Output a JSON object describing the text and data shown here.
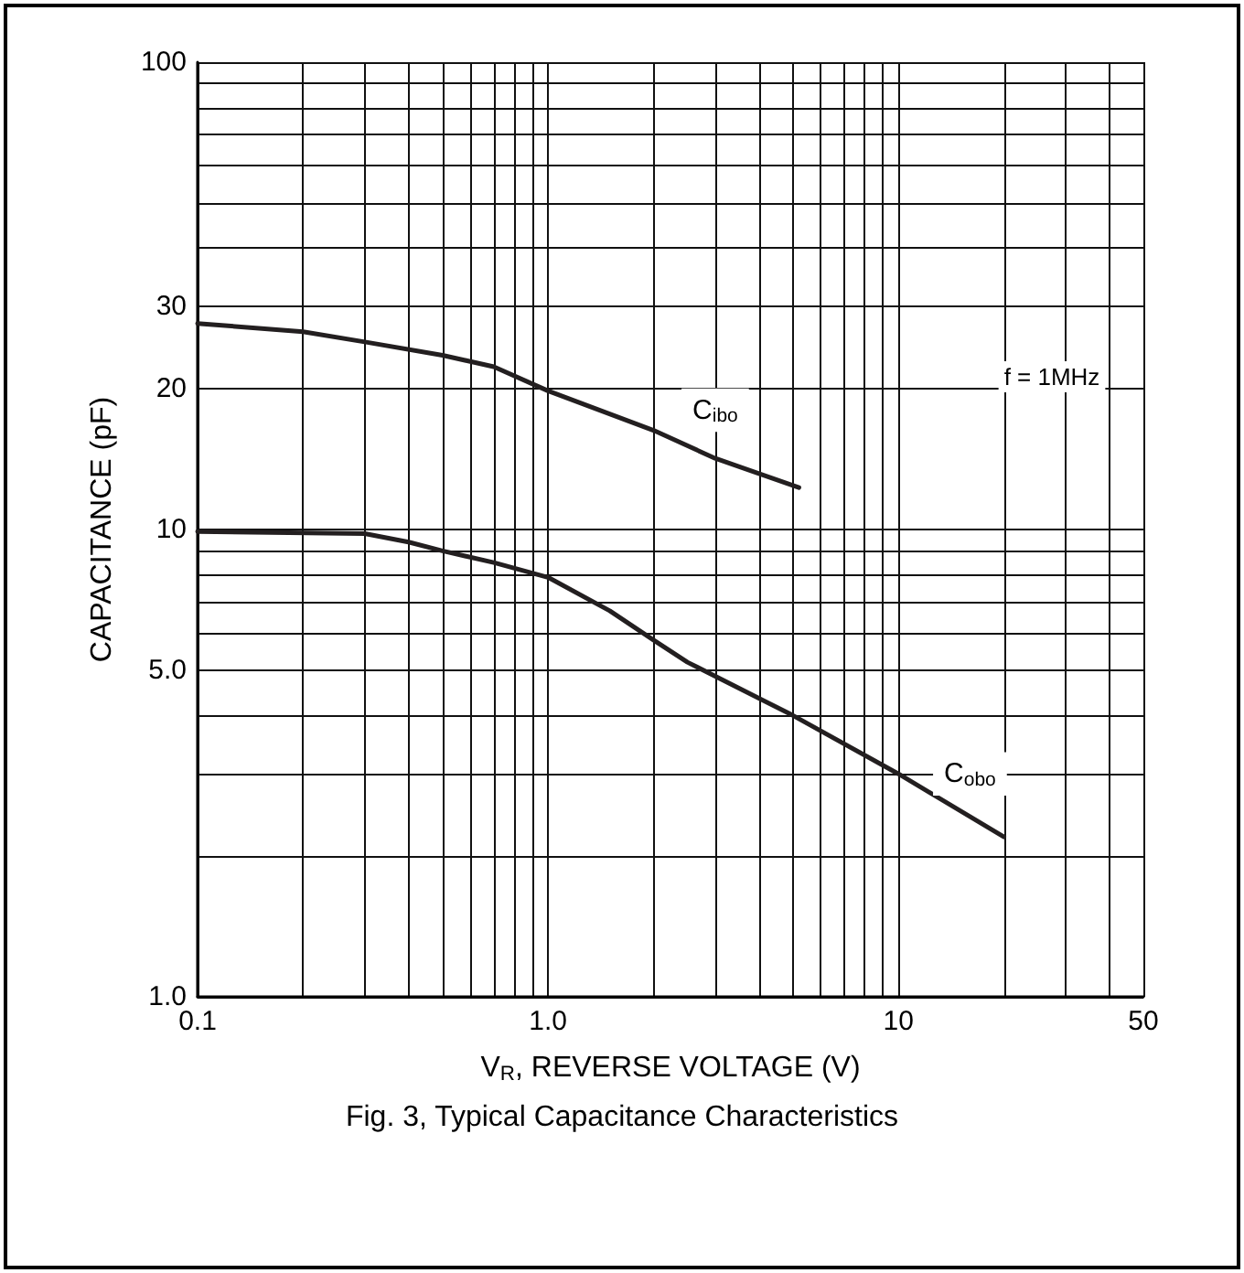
{
  "chart_data": {
    "type": "line",
    "title": "Fig. 3, Typical Capacitance Characteristics",
    "xlabel": "V$_{R}$, REVERSE VOLTAGE (V)",
    "ylabel": "CAPACITANCE (pF)",
    "log": "xy",
    "grid": true,
    "marker": "none",
    "line_style": "solid",
    "xlim": [
      0.1,
      50
    ],
    "ylim": [
      1,
      100
    ],
    "xticks": [
      0.1,
      {
        "value": 0.2,
        "label": null
      },
      {
        "value": 0.3,
        "label": null
      },
      {
        "value": 0.4,
        "label": null
      },
      {
        "value": 0.5,
        "label": null
      },
      {
        "value": 0.6,
        "label": null
      },
      {
        "value": 0.7,
        "label": null
      },
      {
        "value": 0.8,
        "label": null
      },
      {
        "value": 0.9,
        "label": null
      },
      {
        "value": 1,
        "label": "1.0"
      },
      {
        "value": 2,
        "label": null
      },
      {
        "value": 3,
        "label": null
      },
      {
        "value": 4,
        "label": null
      },
      {
        "value": 5,
        "label": null
      },
      {
        "value": 6,
        "label": null
      },
      {
        "value": 7,
        "label": null
      },
      {
        "value": 8,
        "label": null
      },
      {
        "value": 9,
        "label": null
      },
      10,
      {
        "value": 20,
        "label": null
      },
      {
        "value": 30,
        "label": null
      },
      {
        "value": 40,
        "label": null
      },
      50
    ],
    "yticks": [
      {
        "value": 1,
        "label": "1.0"
      },
      {
        "value": 2,
        "label": null
      },
      {
        "value": 3,
        "label": null
      },
      {
        "value": 4,
        "label": null
      },
      {
        "value": 5,
        "label": "5.0"
      },
      {
        "value": 6,
        "label": null
      },
      {
        "value": 7,
        "label": null
      },
      {
        "value": 8,
        "label": null
      },
      {
        "value": 9,
        "label": null
      },
      10,
      20,
      30,
      {
        "value": 40,
        "label": null
      },
      {
        "value": 50,
        "label": null
      },
      {
        "value": 60,
        "label": null
      },
      {
        "value": 70,
        "label": null
      },
      {
        "value": 80,
        "label": null
      },
      {
        "value": 90,
        "label": null
      },
      100
    ],
    "series": [
      {
        "color": "#231f20",
        "x": [
          0.1,
          0.2,
          0.3,
          0.5,
          0.7,
          1,
          2,
          3,
          5.2
        ],
        "values": [
          27.6,
          26.5,
          25.2,
          23.6,
          22.3,
          19.8,
          16.3,
          14.2,
          12.3
        ]
      },
      {
        "color": "#231f20",
        "x": [
          0.1,
          0.3,
          0.4,
          0.5,
          0.7,
          1,
          1.5,
          2,
          2.5,
          5,
          10,
          20
        ],
        "values": [
          9.9,
          9.8,
          9.4,
          9.0,
          8.5,
          7.9,
          6.7,
          5.8,
          5.2,
          4.0,
          3.0,
          2.2
        ]
      }
    ],
    "annotations": [
      {
        "text": "C$_{ibo}$",
        "x": 3,
        "y": 18
      },
      {
        "text": "C$_{obo}$",
        "x": 16,
        "y": 3.0
      },
      "f = 1MHz"
    ]
  }
}
